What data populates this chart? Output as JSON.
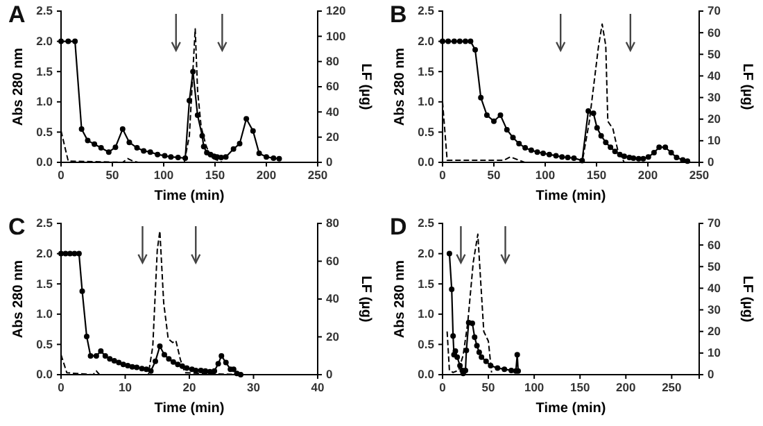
{
  "chart_data": [
    {
      "type": "line",
      "title": "A",
      "xlabel": "Time (min)",
      "ylabel": "Abs 280 nm",
      "y2label": "LF (µg)",
      "xlim": [
        0,
        250
      ],
      "xticks": [
        0,
        50,
        100,
        150,
        200,
        250
      ],
      "ylim": [
        0,
        2.5
      ],
      "yticks": [
        {
          "value": 0,
          "label": "0.0"
        },
        {
          "value": 0.5,
          "label": "0.5"
        },
        {
          "value": 1,
          "label": "1.0"
        },
        {
          "value": 1.5,
          "label": "1.5"
        },
        {
          "value": 2,
          "label": "2.0"
        },
        {
          "value": 2.5,
          "label": "2.5"
        }
      ],
      "y2lim": [
        0,
        120
      ],
      "y2ticks": [
        0,
        20,
        40,
        60,
        80,
        100,
        120
      ],
      "ref_lines": [
        {
          "axis": "x",
          "value": 112
        },
        {
          "axis": "x",
          "value": 157
        }
      ],
      "series": [
        {
          "color": "#000000",
          "marker": "circle",
          "line_style": "solid",
          "x": [
            0,
            7,
            13.6,
            20,
            26,
            32.5,
            39,
            46.5,
            53,
            60,
            66.5,
            74,
            80.5,
            87,
            94,
            101,
            107,
            114,
            121,
            125,
            128.5,
            133,
            137.5,
            139,
            142,
            145.6,
            149,
            152,
            156,
            160.5,
            168,
            174,
            180.5,
            187,
            193,
            200,
            207,
            212.5
          ],
          "values": [
            2,
            2,
            2,
            0.55,
            0.36,
            0.3,
            0.24,
            0.17,
            0.25,
            0.55,
            0.33,
            0.24,
            0.19,
            0.17,
            0.13,
            0.11,
            0.09,
            0.08,
            0.07,
            1.02,
            1.5,
            0.78,
            0.44,
            0.26,
            0.16,
            0.13,
            0.1,
            0.09,
            0.08,
            0.09,
            0.22,
            0.31,
            0.72,
            0.52,
            0.15,
            0.09,
            0.07,
            0.06
          ]
        },
        {
          "color": "#000000",
          "marker": "none",
          "line_style": "dashed",
          "axis": "y2",
          "x": [
            0,
            7,
            60,
            65,
            70,
            75,
            120,
            125,
            130.7,
            133,
            136.5,
            141,
            145.6,
            157,
            210
          ],
          "values": [
            25,
            1,
            0,
            3,
            1,
            0,
            0,
            21,
            106,
            57,
            28,
            14,
            4,
            0,
            0
          ]
        }
      ]
    },
    {
      "type": "line",
      "title": "B",
      "xlabel": "Time (min)",
      "ylabel": "Abs 280 nm",
      "y2label": "LF (µg)",
      "xlim": [
        0,
        250
      ],
      "xticks": [
        0,
        50,
        100,
        150,
        200,
        250
      ],
      "ylim": [
        0,
        2.5
      ],
      "yticks": [
        {
          "value": 0,
          "label": "0.0"
        },
        {
          "value": 0.5,
          "label": "0.5"
        },
        {
          "value": 1,
          "label": "1.0"
        },
        {
          "value": 1.5,
          "label": "1.5"
        },
        {
          "value": 2,
          "label": "2.0"
        },
        {
          "value": 2.5,
          "label": "2.5"
        }
      ],
      "y2lim": [
        0,
        70
      ],
      "y2ticks": [
        0,
        10,
        20,
        30,
        40,
        50,
        60,
        70
      ],
      "ref_lines": [
        {
          "axis": "x",
          "value": 115
        },
        {
          "axis": "x",
          "value": 183
        }
      ],
      "series": [
        {
          "color": "#000000",
          "marker": "circle",
          "line_style": "solid",
          "x": [
            0,
            5.5,
            11.4,
            16.8,
            22.3,
            27.3,
            31.8,
            37.3,
            43.2,
            50,
            56.4,
            62.7,
            68.6,
            74.5,
            80.5,
            86.4,
            92.3,
            98,
            104,
            110.5,
            116.4,
            122,
            128,
            136,
            142,
            147,
            150.5,
            154.5,
            159,
            163.6,
            168,
            172.7,
            177,
            182,
            186,
            191,
            195.5,
            200.5,
            206,
            211,
            217,
            222.7,
            228,
            234,
            238.6
          ],
          "values": [
            2,
            2,
            2,
            2,
            2,
            2,
            1.86,
            1.07,
            0.78,
            0.68,
            0.78,
            0.54,
            0.41,
            0.31,
            0.24,
            0.2,
            0.17,
            0.15,
            0.13,
            0.11,
            0.09,
            0.08,
            0.07,
            0.03,
            0.85,
            0.81,
            0.57,
            0.44,
            0.33,
            0.25,
            0.18,
            0.13,
            0.1,
            0.08,
            0.07,
            0.06,
            0.06,
            0.09,
            0.16,
            0.25,
            0.25,
            0.16,
            0.08,
            0.04,
            0.02
          ]
        },
        {
          "color": "#000000",
          "marker": "none",
          "line_style": "dashed",
          "axis": "y2",
          "x": [
            0,
            4.5,
            60,
            66,
            80,
            136,
            143,
            152,
            155.5,
            159,
            161,
            166,
            170.5,
            177,
            240
          ],
          "values": [
            28,
            1,
            1,
            2.5,
            0,
            0,
            19,
            54,
            64,
            54,
            19,
            15.5,
            6,
            0,
            0
          ]
        }
      ]
    },
    {
      "type": "line",
      "title": "C",
      "xlabel": "Time (min)",
      "ylabel": "Abs 280 nm",
      "y2label": "LF (µg)",
      "xlim": [
        0,
        40
      ],
      "xticks": [
        0,
        10,
        20,
        30,
        40
      ],
      "ylim": [
        0,
        2.5
      ],
      "yticks": [
        {
          "value": 0,
          "label": "0.0"
        },
        {
          "value": 0.5,
          "label": "0.5"
        },
        {
          "value": 1,
          "label": "1.0"
        },
        {
          "value": 1.5,
          "label": "1.5"
        },
        {
          "value": 2,
          "label": "2.0"
        },
        {
          "value": 2.5,
          "label": "2.5"
        }
      ],
      "y2lim": [
        0,
        80
      ],
      "y2ticks": [
        0,
        20,
        40,
        60,
        80
      ],
      "ref_lines": [
        {
          "axis": "x",
          "value": 12.7
        },
        {
          "axis": "x",
          "value": 21
        }
      ],
      "series": [
        {
          "color": "#000000",
          "marker": "circle",
          "line_style": "solid",
          "x": [
            0,
            0.7,
            1.4,
            2.1,
            2.8,
            3.3,
            4,
            4.6,
            5.5,
            6.2,
            6.9,
            7.6,
            8.3,
            9,
            9.7,
            10.4,
            11.1,
            11.8,
            12.6,
            13.3,
            14,
            14.7,
            15.4,
            16.1,
            16.8,
            17.5,
            18.2,
            18.9,
            19.6,
            20.4,
            21,
            21.8,
            22.5,
            23.2,
            23.9,
            24.5,
            25,
            25.7,
            26.4,
            26.9,
            27.4,
            28
          ],
          "values": [
            2,
            2,
            2,
            2,
            2,
            1.38,
            0.63,
            0.31,
            0.31,
            0.39,
            0.31,
            0.26,
            0.23,
            0.2,
            0.17,
            0.15,
            0.13,
            0.12,
            0.1,
            0.09,
            0.06,
            0.22,
            0.47,
            0.33,
            0.26,
            0.21,
            0.17,
            0.14,
            0.11,
            0.09,
            0.07,
            0.07,
            0.06,
            0.05,
            0.06,
            0.18,
            0.31,
            0.2,
            0.09,
            0.09,
            0.02,
            0
          ]
        },
        {
          "color": "#000000",
          "marker": "none",
          "line_style": "dashed",
          "axis": "y2",
          "x": [
            0,
            0.9,
            5,
            5.5,
            6,
            13.6,
            14.3,
            15,
            15.4,
            16,
            16.7,
            17.4,
            17.9,
            18.6,
            19.3,
            28
          ],
          "values": [
            10.5,
            1,
            0,
            2,
            0,
            0,
            15,
            66,
            76,
            38,
            19,
            17,
            18,
            8,
            1,
            0
          ]
        }
      ]
    },
    {
      "type": "line",
      "title": "D",
      "xlabel": "Time (min)",
      "ylabel": "Abs 280 nm",
      "y2label": "LF (µg)",
      "xlim": [
        0,
        280
      ],
      "xticks": [
        0,
        50,
        100,
        150,
        200,
        250
      ],
      "ylim": [
        0,
        2.5
      ],
      "yticks": [
        {
          "value": 0,
          "label": "0.0"
        },
        {
          "value": 0.5,
          "label": "0.5"
        },
        {
          "value": 1,
          "label": "1.0"
        },
        {
          "value": 1.5,
          "label": "1.5"
        },
        {
          "value": 2,
          "label": "2.0"
        },
        {
          "value": 2.5,
          "label": "2.5"
        }
      ],
      "y2lim": [
        0,
        70
      ],
      "y2ticks": [
        0,
        10,
        20,
        30,
        40,
        50,
        60,
        70
      ],
      "ref_lines": [
        {
          "axis": "x",
          "value": 20
        },
        {
          "axis": "x",
          "value": 68.5
        }
      ],
      "series": [
        {
          "color": "#000000",
          "marker": "circle",
          "line_style": "solid",
          "x": [
            7.5,
            10,
            11.5,
            12.5,
            14,
            16,
            19,
            21.5,
            22.5,
            25,
            26,
            28.5,
            32.5,
            35,
            37.5,
            40,
            42.5,
            47.5,
            52.5,
            60,
            67.5,
            75,
            80,
            81.5,
            82.5
          ],
          "values": [
            2,
            1.41,
            0.64,
            0.33,
            0.39,
            0.29,
            0.15,
            0.07,
            0.02,
            0.07,
            0.4,
            0.86,
            0.85,
            0.62,
            0.48,
            0.37,
            0.29,
            0.22,
            0.15,
            0.11,
            0.09,
            0.07,
            0.06,
            0.33,
            0.06
          ]
        },
        {
          "color": "#000000",
          "marker": "none",
          "line_style": "dashed",
          "axis": "y2",
          "x": [
            5,
            7.5,
            11.5,
            17.5,
            22.5,
            27.5,
            33.5,
            38.5,
            41.5,
            45,
            50,
            53.5
          ],
          "values": [
            20,
            2,
            1,
            2,
            9,
            24,
            52,
            65,
            44,
            20,
            15.5,
            1
          ]
        }
      ]
    }
  ]
}
